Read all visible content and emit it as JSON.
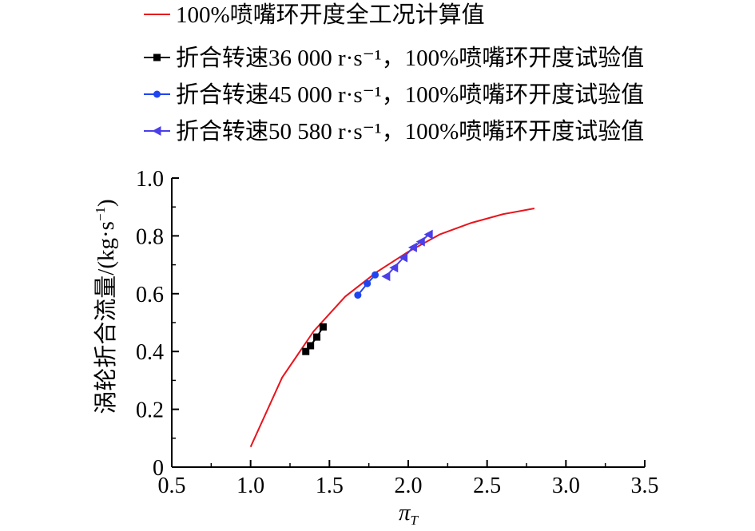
{
  "chart_data": {
    "type": "line",
    "xlabel": "π",
    "xlabel_sub": "T",
    "ylabel": "涡轮折合流量/(kg·s",
    "ylabel_sup": "−1",
    "ylabel_close": ")",
    "xlim": [
      0.5,
      3.5
    ],
    "ylim": [
      0,
      1.0
    ],
    "xticks": [
      "0.5",
      "1.0",
      "1.5",
      "2.0",
      "2.5",
      "3.0",
      "3.5"
    ],
    "yticks": [
      "0",
      "0.2",
      "0.4",
      "0.6",
      "0.8",
      "1.0"
    ],
    "grid": false,
    "legend_position": "top",
    "series": [
      {
        "name": "100%喷嘴环开度全工况计算值",
        "style": "line",
        "color": "#e8141c",
        "x": [
          1.0,
          1.2,
          1.4,
          1.6,
          1.8,
          2.0,
          2.2,
          2.4,
          2.6,
          2.8
        ],
        "y": [
          0.07,
          0.31,
          0.47,
          0.59,
          0.675,
          0.745,
          0.805,
          0.845,
          0.875,
          0.895
        ]
      },
      {
        "name": "折合转速36 000 r·s⁻¹，100%喷嘴环开度试验值",
        "style": "marker-square",
        "color": "#000000",
        "x": [
          1.35,
          1.38,
          1.42,
          1.46
        ],
        "y": [
          0.4,
          0.42,
          0.45,
          0.485
        ]
      },
      {
        "name": "折合转速45 000 r·s⁻¹，100%喷嘴环开度试验值",
        "style": "marker-circle",
        "color": "#1f45f0",
        "x": [
          1.68,
          1.74,
          1.79
        ],
        "y": [
          0.595,
          0.635,
          0.665
        ]
      },
      {
        "name": "折合转速50 580 r·s⁻¹，100%喷嘴环开度试验值",
        "style": "marker-triangle-left",
        "color": "#4a3fe8",
        "x": [
          1.86,
          1.91,
          1.97,
          2.03,
          2.08,
          2.13
        ],
        "y": [
          0.66,
          0.69,
          0.725,
          0.76,
          0.78,
          0.805
        ]
      }
    ]
  }
}
